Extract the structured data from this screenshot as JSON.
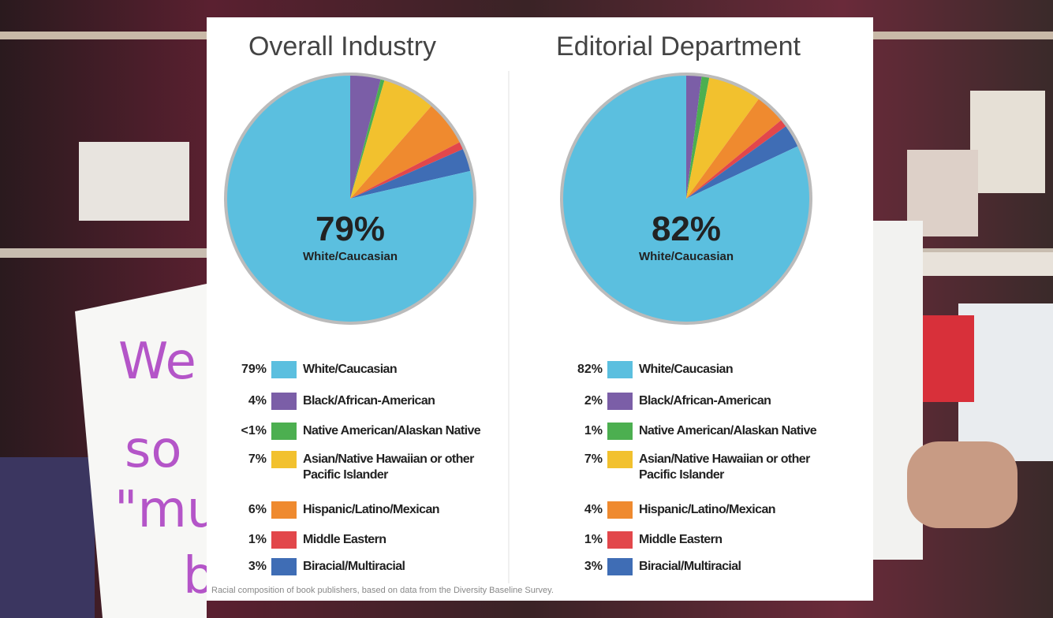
{
  "chart_data": [
    {
      "type": "pie",
      "title": "Overall Industry",
      "categories": [
        "White/Caucasian",
        "Black/African-American",
        "Native American/Alaskan Native",
        "Asian/Native Hawaiian or other Pacific Islander",
        "Hispanic/Latino/Mexican",
        "Middle Eastern",
        "Biracial/Multiracial"
      ],
      "values": [
        79,
        4,
        0.5,
        7,
        6,
        1,
        3
      ],
      "value_labels": [
        "79%",
        "4%",
        "<1%",
        "7%",
        "6%",
        "1%",
        "3%"
      ],
      "colors": [
        "#5bbfdf",
        "#7b5ea7",
        "#4caf50",
        "#f2c12e",
        "#ef8a2f",
        "#e2474b",
        "#3f6db5"
      ]
    },
    {
      "type": "pie",
      "title": "Editorial Department",
      "categories": [
        "White/Caucasian",
        "Black/African-American",
        "Native American/Alaskan Native",
        "Asian/Native Hawaiian or other Pacific Islander",
        "Hispanic/Latino/Mexican",
        "Middle Eastern",
        "Biracial/Multiracial"
      ],
      "values": [
        82,
        2,
        1,
        7,
        4,
        1,
        3
      ],
      "value_labels": [
        "82%",
        "2%",
        "1%",
        "7%",
        "4%",
        "1%",
        "3%"
      ],
      "colors": [
        "#5bbfdf",
        "#7b5ea7",
        "#4caf50",
        "#f2c12e",
        "#ef8a2f",
        "#e2474b",
        "#3f6db5"
      ]
    }
  ],
  "caption": "Racial composition of book publishers, based on data from the Diversity Baseline Survey.",
  "background_text": [
    "We",
    "so",
    "\"mu",
    "b"
  ]
}
